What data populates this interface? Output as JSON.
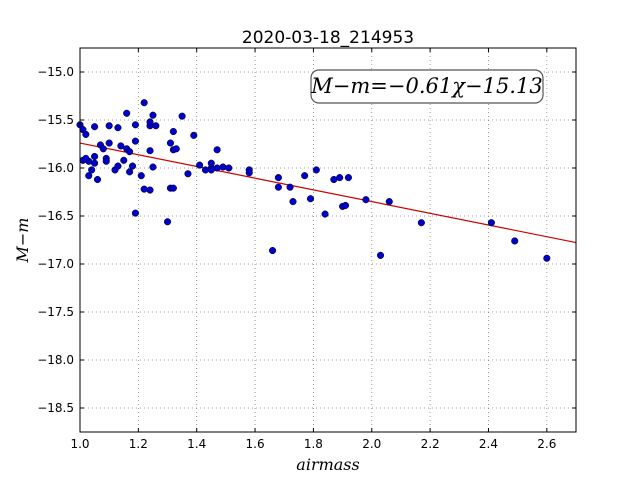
{
  "chart_data": {
    "type": "scatter",
    "title": "2020-03-18_214953",
    "xlabel": "airmass",
    "ylabel": "M−m",
    "xlim": [
      1.0,
      2.7
    ],
    "ylim": [
      -18.75,
      -14.75
    ],
    "y_inverted": true,
    "grid": true,
    "x_ticks": [
      1.0,
      1.2,
      1.4,
      1.6,
      1.8,
      2.0,
      2.2,
      2.4,
      2.6
    ],
    "x_tick_labels": [
      "1.0",
      "1.2",
      "1.4",
      "1.6",
      "1.8",
      "2.0",
      "2.2",
      "2.4",
      "2.6"
    ],
    "y_ticks": [
      -15.0,
      -15.5,
      -16.0,
      -16.5,
      -17.0,
      -17.5,
      -18.0,
      -18.5
    ],
    "y_tick_labels": [
      "−15.0",
      "−15.5",
      "−16.0",
      "−16.5",
      "−17.0",
      "−17.5",
      "−18.0",
      "−18.5"
    ],
    "annotation": "M−m=−0.61χ−15.13",
    "fit": {
      "slope": -0.61,
      "intercept": -15.13,
      "color": "#cc0000"
    },
    "marker_color": "#0000cc",
    "points": [
      [
        1.0,
        -15.55
      ],
      [
        1.01,
        -15.6
      ],
      [
        1.02,
        -15.65
      ],
      [
        1.03,
        -15.93
      ],
      [
        1.01,
        -15.92
      ],
      [
        1.02,
        -15.9
      ],
      [
        1.04,
        -16.02
      ],
      [
        1.05,
        -15.95
      ],
      [
        1.03,
        -16.08
      ],
      [
        1.05,
        -15.88
      ],
      [
        1.05,
        -15.57
      ],
      [
        1.06,
        -16.12
      ],
      [
        1.07,
        -15.76
      ],
      [
        1.08,
        -15.8
      ],
      [
        1.09,
        -15.9
      ],
      [
        1.09,
        -15.93
      ],
      [
        1.1,
        -15.56
      ],
      [
        1.1,
        -15.74
      ],
      [
        1.12,
        -16.02
      ],
      [
        1.13,
        -15.98
      ],
      [
        1.13,
        -15.58
      ],
      [
        1.14,
        -15.77
      ],
      [
        1.15,
        -15.92
      ],
      [
        1.16,
        -15.43
      ],
      [
        1.16,
        -15.8
      ],
      [
        1.17,
        -15.83
      ],
      [
        1.17,
        -16.04
      ],
      [
        1.18,
        -15.98
      ],
      [
        1.19,
        -15.55
      ],
      [
        1.19,
        -15.72
      ],
      [
        1.19,
        -16.47
      ],
      [
        1.21,
        -16.08
      ],
      [
        1.22,
        -15.32
      ],
      [
        1.22,
        -16.22
      ],
      [
        1.24,
        -15.56
      ],
      [
        1.24,
        -15.52
      ],
      [
        1.24,
        -15.82
      ],
      [
        1.24,
        -16.23
      ],
      [
        1.25,
        -15.99
      ],
      [
        1.25,
        -15.45
      ],
      [
        1.26,
        -15.56
      ],
      [
        1.3,
        -16.56
      ],
      [
        1.31,
        -15.74
      ],
      [
        1.31,
        -16.21
      ],
      [
        1.32,
        -16.21
      ],
      [
        1.32,
        -15.62
      ],
      [
        1.32,
        -15.81
      ],
      [
        1.33,
        -15.8
      ],
      [
        1.35,
        -15.46
      ],
      [
        1.37,
        -16.06
      ],
      [
        1.39,
        -15.66
      ],
      [
        1.41,
        -15.97
      ],
      [
        1.43,
        -16.02
      ],
      [
        1.45,
        -15.95
      ],
      [
        1.45,
        -16.0
      ],
      [
        1.45,
        -16.02
      ],
      [
        1.47,
        -15.81
      ],
      [
        1.47,
        -16.0
      ],
      [
        1.49,
        -15.99
      ],
      [
        1.51,
        -16.0
      ],
      [
        1.58,
        -16.02
      ],
      [
        1.58,
        -16.05
      ],
      [
        1.66,
        -16.86
      ],
      [
        1.68,
        -16.1
      ],
      [
        1.68,
        -16.2
      ],
      [
        1.72,
        -16.2
      ],
      [
        1.73,
        -16.35
      ],
      [
        1.77,
        -16.08
      ],
      [
        1.79,
        -16.32
      ],
      [
        1.81,
        -16.02
      ],
      [
        1.84,
        -16.48
      ],
      [
        1.87,
        -16.12
      ],
      [
        1.89,
        -16.1
      ],
      [
        1.9,
        -16.4
      ],
      [
        1.91,
        -16.39
      ],
      [
        1.92,
        -16.1
      ],
      [
        1.98,
        -16.33
      ],
      [
        2.03,
        -16.91
      ],
      [
        2.06,
        -16.35
      ],
      [
        2.17,
        -16.57
      ],
      [
        2.41,
        -16.57
      ],
      [
        2.49,
        -16.76
      ],
      [
        2.6,
        -16.94
      ]
    ]
  }
}
